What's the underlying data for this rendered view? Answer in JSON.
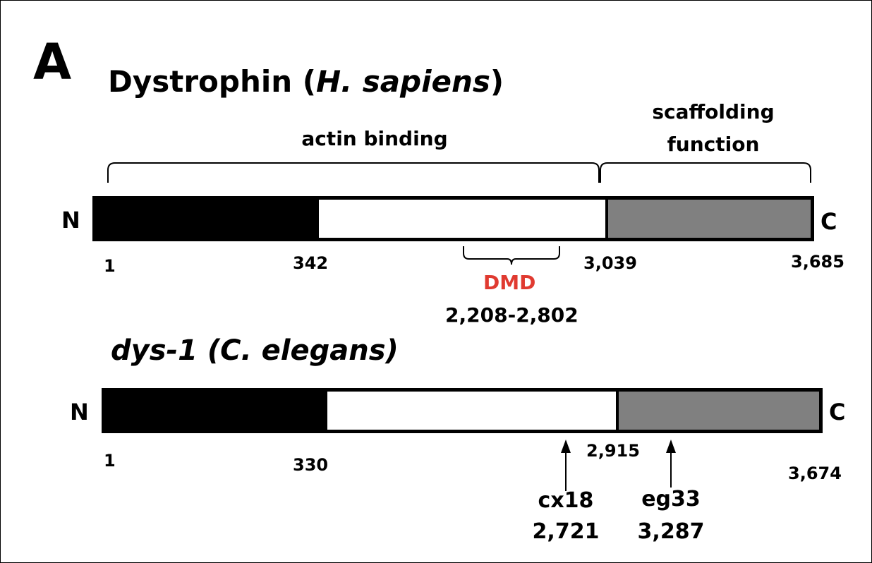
{
  "panel_label": "A",
  "protein1": {
    "title_main": "Dystrophin (",
    "title_species": "H. sapiens",
    "title_close": ")",
    "regions": {
      "actin": "actin binding",
      "scaffold_l1": "scaffolding",
      "scaffold_l2": "function"
    },
    "n_term": "N",
    "c_term": "C",
    "positions": {
      "p1": "1",
      "p2": "342",
      "p3": "3,039",
      "p4": "3,685"
    },
    "segments": [
      {
        "name": "n-terminal-domain",
        "color": "#000000"
      },
      {
        "name": "rod-domain",
        "color": "#ffffff"
      },
      {
        "name": "c-terminal-domain",
        "color": "#808080"
      }
    ],
    "dmd": {
      "label": "DMD",
      "range": "2,208-2,802",
      "color": "#e03a30"
    }
  },
  "protein2": {
    "title": "dys-1 (C. elegans)",
    "n_term": "N",
    "c_term": "C",
    "positions": {
      "p1": "1",
      "p2": "330",
      "p3": "2,915",
      "p4": "3,674"
    },
    "segments": [
      {
        "name": "n-terminal-domain",
        "color": "#000000"
      },
      {
        "name": "rod-domain",
        "color": "#ffffff"
      },
      {
        "name": "c-terminal-domain",
        "color": "#808080"
      }
    ],
    "mutations": [
      {
        "name": "cx18",
        "position": "2,721"
      },
      {
        "name": "eg33",
        "position": "3,287"
      }
    ]
  }
}
